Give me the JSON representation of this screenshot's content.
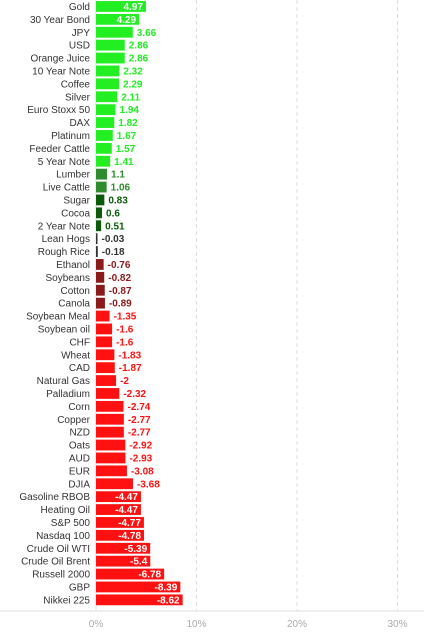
{
  "chart_data": {
    "type": "bar",
    "orientation": "horizontal",
    "xlim": [
      -10,
      32
    ],
    "x_ticks": [
      {
        "value": 0,
        "label": "0%"
      },
      {
        "value": 10,
        "label": "10%"
      },
      {
        "value": 20,
        "label": "20%"
      },
      {
        "value": 30,
        "label": "30%"
      }
    ],
    "grid": "vertical dashed",
    "colors": {
      "strong_positive": "#22ee22",
      "positive": "#2e8b2e",
      "weak_positive": "#0a5a0a",
      "near_zero": "#333333",
      "weak_negative": "#8b1a1a",
      "negative": "#ff1111",
      "grid": "#dddddd"
    },
    "categories": [
      "Gold",
      "30 Year Bond",
      "JPY",
      "USD",
      "Orange Juice",
      "10 Year Note",
      "Coffee",
      "Silver",
      "Euro Stoxx 50",
      "DAX",
      "Platinum",
      "Feeder Cattle",
      "5 Year Note",
      "Lumber",
      "Live Cattle",
      "Sugar",
      "Cocoa",
      "2 Year Note",
      "Lean Hogs",
      "Rough Rice",
      "Ethanol",
      "Soybeans",
      "Cotton",
      "Canola",
      "Soybean Meal",
      "Soybean oil",
      "CHF",
      "Wheat",
      "CAD",
      "Natural Gas",
      "Palladium",
      "Corn",
      "Copper",
      "NZD",
      "Oats",
      "AUD",
      "EUR",
      "DJIA",
      "Gasoline RBOB",
      "Heating Oil",
      "S&P 500",
      "Nasdaq 100",
      "Crude Oil WTI",
      "Crude Oil Brent",
      "Russell 2000",
      "GBP",
      "Nikkei 225"
    ],
    "values": [
      4.97,
      4.29,
      3.66,
      2.86,
      2.86,
      2.32,
      2.29,
      2.11,
      1.94,
      1.82,
      1.67,
      1.57,
      1.41,
      1.1,
      1.06,
      0.83,
      0.6,
      0.51,
      -0.03,
      -0.18,
      -0.76,
      -0.82,
      -0.87,
      -0.89,
      -1.35,
      -1.6,
      -1.6,
      -1.83,
      -1.87,
      -2,
      -2.32,
      -2.74,
      -2.77,
      -2.77,
      -2.92,
      -2.93,
      -3.08,
      -3.68,
      -4.47,
      -4.47,
      -4.77,
      -4.78,
      -5.39,
      -5.4,
      -6.78,
      -8.39,
      -8.62
    ],
    "value_labels": [
      "4.97",
      "4.29",
      "3.66",
      "2.86",
      "2.86",
      "2.32",
      "2.29",
      "2.11",
      "1.94",
      "1.82",
      "1.67",
      "1.57",
      "1.41",
      "1.1",
      "1.06",
      "0.83",
      "0.6",
      "0.51",
      "-0.03",
      "-0.18",
      "-0.76",
      "-0.82",
      "-0.87",
      "-0.89",
      "-1.35",
      "-1.6",
      "-1.6",
      "-1.83",
      "-1.87",
      "-2",
      "-2.32",
      "-2.74",
      "-2.77",
      "-2.77",
      "-2.92",
      "-2.93",
      "-3.08",
      "-3.68",
      "-4.47",
      "-4.47",
      "-4.77",
      "-4.78",
      "-5.39",
      "-5.4",
      "-6.78",
      "-8.39",
      "-8.62"
    ]
  }
}
